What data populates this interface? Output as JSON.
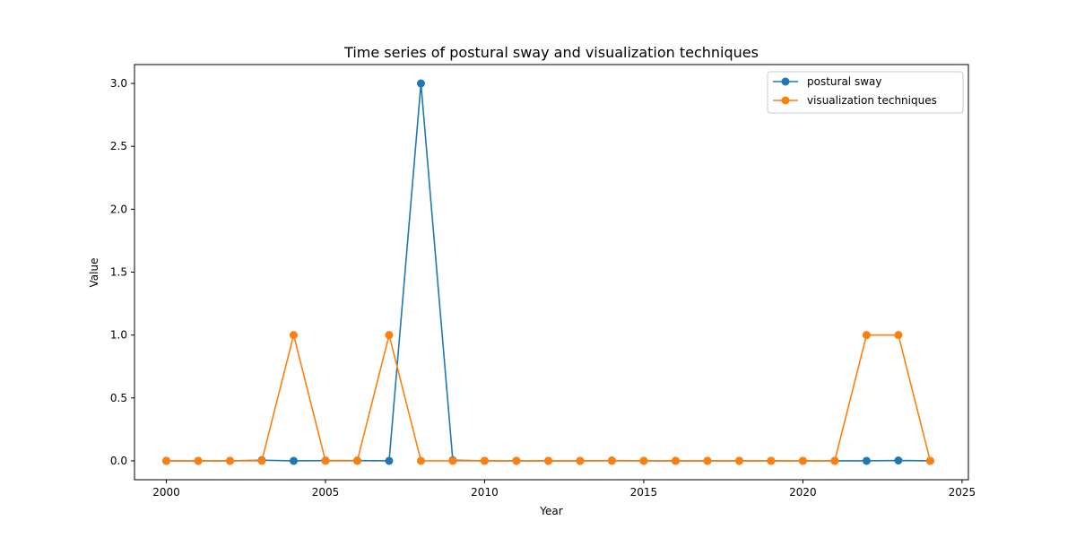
{
  "chart_data": {
    "type": "line",
    "title": "Time series of postural sway and visualization techniques",
    "xlabel": "Year",
    "ylabel": "Value",
    "xlim": [
      1999.0,
      2025.2
    ],
    "ylim": [
      -0.15,
      3.15
    ],
    "xticks": [
      2000,
      2005,
      2010,
      2015,
      2020,
      2025
    ],
    "xtick_labels": [
      "2000",
      "2005",
      "2010",
      "2015",
      "2020",
      "2025"
    ],
    "yticks": [
      0.0,
      0.5,
      1.0,
      1.5,
      2.0,
      2.5,
      3.0
    ],
    "ytick_labels": [
      "0.0",
      "0.5",
      "1.0",
      "1.5",
      "2.0",
      "2.5",
      "3.0"
    ],
    "grid": false,
    "legend_position": "top-right",
    "x": [
      2000,
      2001,
      2002,
      2003,
      2004,
      2005,
      2006,
      2007,
      2008,
      2009,
      2010,
      2011,
      2012,
      2013,
      2014,
      2015,
      2016,
      2017,
      2018,
      2019,
      2020,
      2021,
      2022,
      2023,
      2024
    ],
    "series": [
      {
        "name": "postural sway",
        "color": "#1f77b4",
        "values": [
          0.0,
          0.0,
          0.0,
          0.005,
          0.0,
          0.002,
          0.002,
          0.0,
          3.0,
          0.005,
          0.0,
          0.0,
          0.0,
          0.0,
          0.002,
          0.0,
          0.0,
          0.0,
          0.0,
          0.0,
          0.0,
          0.0,
          0.0,
          0.003,
          0.0
        ]
      },
      {
        "name": "visualization techniques",
        "color": "#ff7f0e",
        "values": [
          0.0,
          0.0,
          0.0,
          0.0,
          1.0,
          0.0,
          0.0,
          1.0,
          0.0,
          0.0,
          0.0,
          0.0,
          0.0,
          0.0,
          0.0,
          0.0,
          0.0,
          0.0,
          0.0,
          0.0,
          0.0,
          0.0,
          1.0,
          1.0,
          0.0
        ]
      }
    ]
  }
}
